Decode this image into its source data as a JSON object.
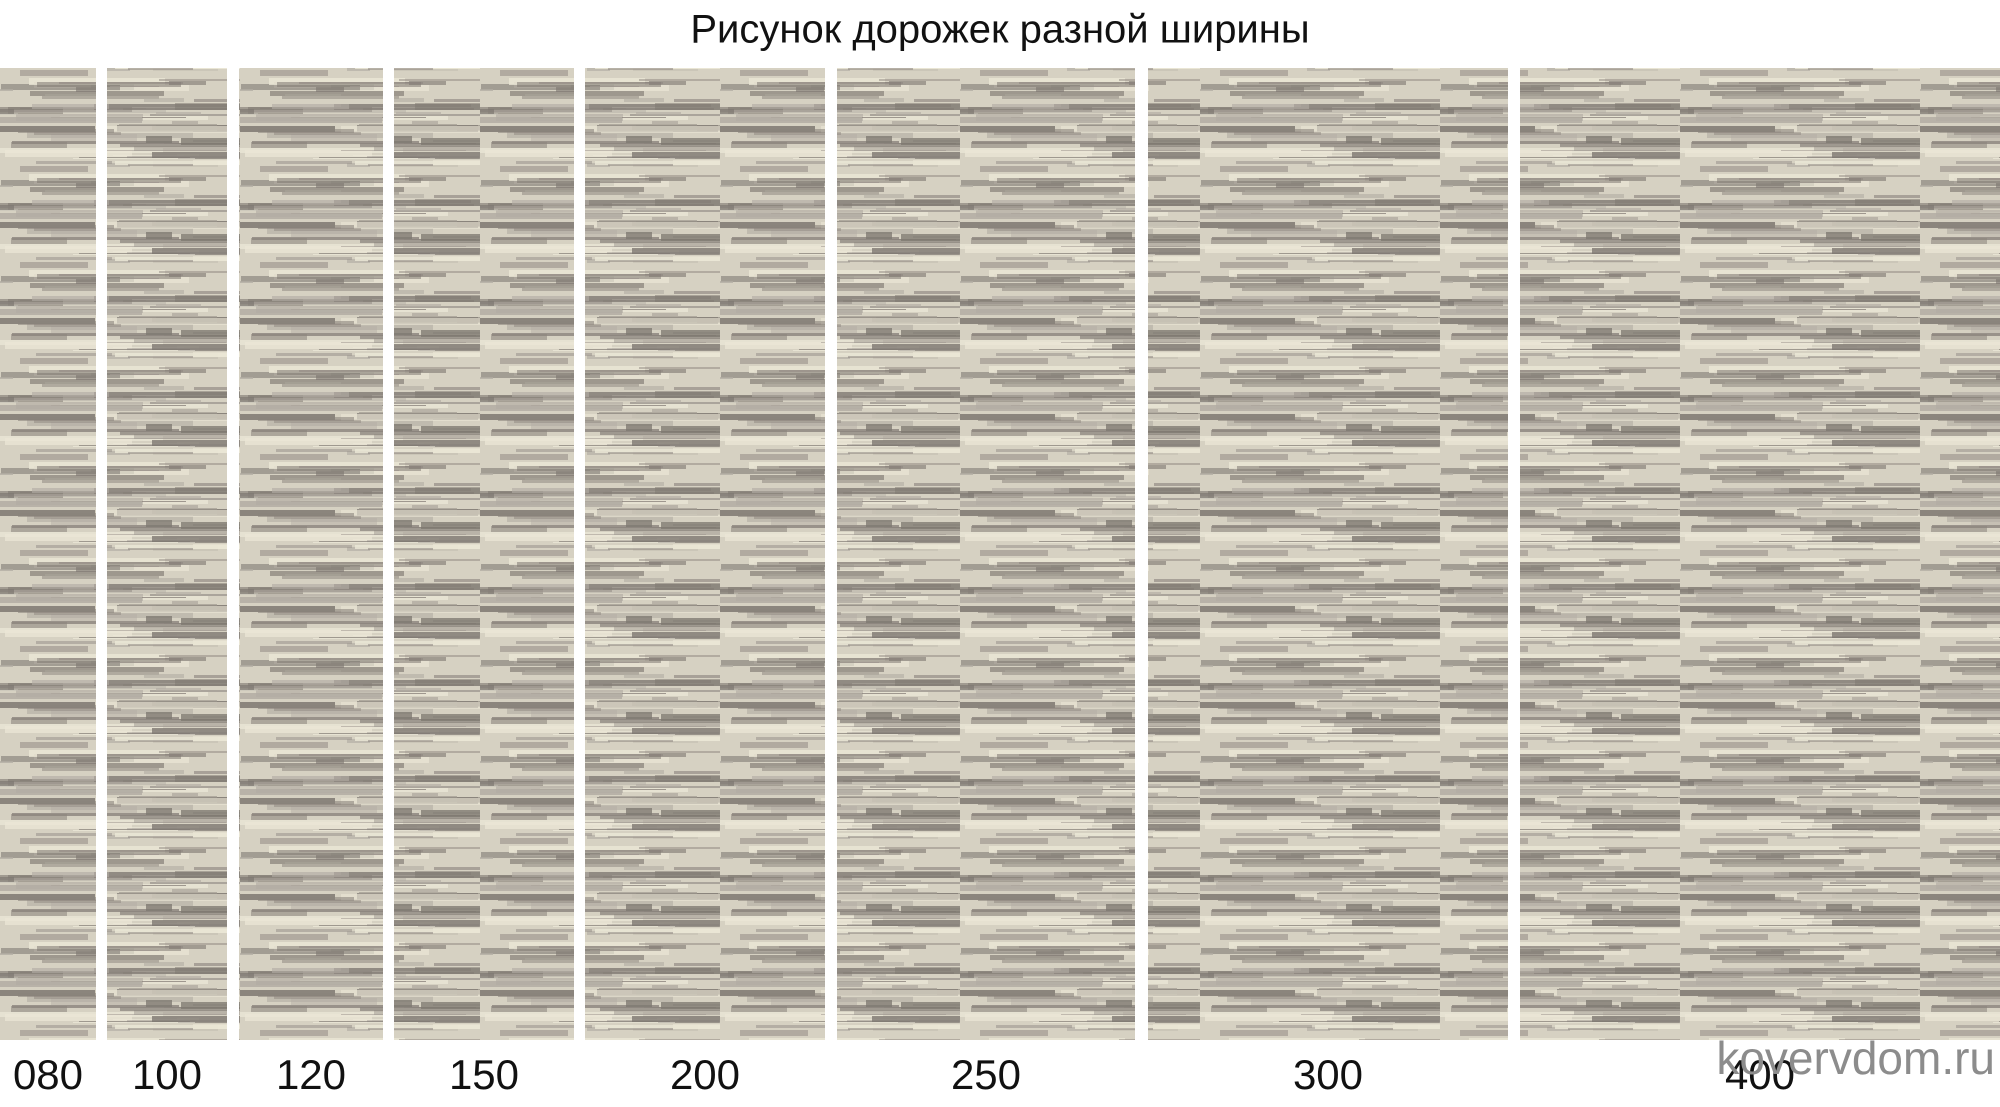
{
  "title": "Рисунок дорожек разной ширины",
  "items": [
    {
      "label": "080"
    },
    {
      "label": "100"
    },
    {
      "label": "120"
    },
    {
      "label": "150"
    },
    {
      "label": "200"
    },
    {
      "label": "250"
    },
    {
      "label": "300"
    },
    {
      "label": "400"
    }
  ],
  "watermark": "kovervdom.ru"
}
